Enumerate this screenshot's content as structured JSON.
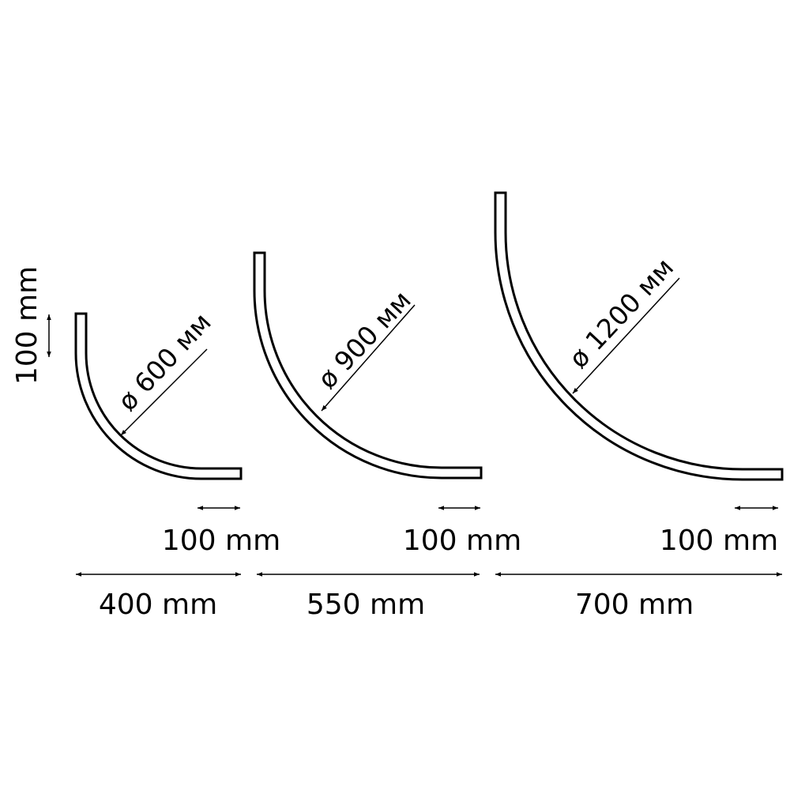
{
  "vertical_dimension": {
    "label": "100 mm"
  },
  "pieces": [
    {
      "diameter_label": "ø 600 мм",
      "straight_label": "100 mm",
      "width_label": "400 mm"
    },
    {
      "diameter_label": "ø 900 мм",
      "straight_label": "100 mm",
      "width_label": "550 mm"
    },
    {
      "diameter_label": "ø 1200 мм",
      "straight_label": "100 mm",
      "width_label": "700 mm"
    }
  ]
}
